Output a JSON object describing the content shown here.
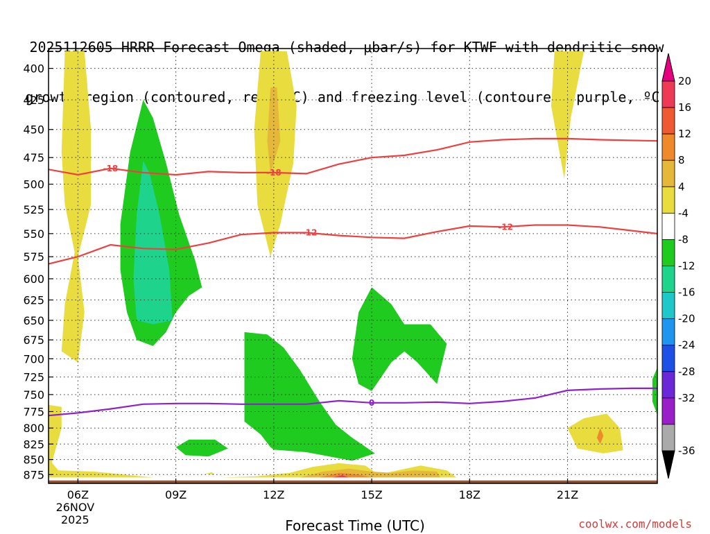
{
  "title": {
    "line1": "2025112605 HRRR Forecast Omega (shaded, μbar/s) for KTWF with dendritic snow",
    "line2": "growth region (contoured, red, ºC) and freezing level (contoured, purple, ºC)"
  },
  "credit": "coolwx.com/models",
  "chart_data": {
    "type": "heatmap",
    "title": "2025112605 HRRR Forecast Omega (shaded, μbar/s) for KTWF with dendritic snow growth region (contoured, red, ºC) and freezing level (contoured, purple, ºC)",
    "xlabel": "Forecast Time (UTC)",
    "ylabel": "",
    "x_ticks": [
      {
        "hour": 6,
        "label": "06Z",
        "sub1": "26NOV",
        "sub2": "2025"
      },
      {
        "hour": 9,
        "label": "09Z"
      },
      {
        "hour": 12,
        "label": "12Z"
      },
      {
        "hour": 15,
        "label": "15Z"
      },
      {
        "hour": 18,
        "label": "18Z"
      },
      {
        "hour": 21,
        "label": "21Z"
      }
    ],
    "xlim": [
      5.1,
      23.75
    ],
    "ylim": [
      890,
      385
    ],
    "y_ticks": [
      400,
      425,
      450,
      475,
      500,
      525,
      550,
      575,
      600,
      625,
      650,
      675,
      700,
      725,
      750,
      775,
      800,
      825,
      850,
      875
    ],
    "colorbar": {
      "labels": [
        "20",
        "16",
        "12",
        "8",
        "4",
        "-4",
        "-8",
        "-12",
        "-16",
        "-20",
        "-24",
        "-28",
        "-32",
        "-36"
      ],
      "colors": [
        "#ee3b55",
        "#f05a32",
        "#ee8a2c",
        "#e6b83a",
        "#e9dc3e",
        "#ffffff",
        "#1ecb1e",
        "#1ed48c",
        "#1ec8c8",
        "#1e96f0",
        "#1e50e6",
        "#6a28d6",
        "#9a1fc8",
        "#aaaaaa"
      ],
      "top_color": "#e6007e",
      "bottom_color": "#000000"
    },
    "contours": [
      {
        "label": "-18",
        "color": "#ee4040",
        "points": [
          [
            5.1,
            486
          ],
          [
            6.0,
            491
          ],
          [
            7.0,
            485
          ],
          [
            8.0,
            489
          ],
          [
            9.0,
            491
          ],
          [
            10.0,
            488
          ],
          [
            11.0,
            489
          ],
          [
            12.0,
            489
          ],
          [
            13.0,
            490
          ],
          [
            14.0,
            481
          ],
          [
            15.0,
            475
          ],
          [
            16.0,
            473
          ],
          [
            17.0,
            468
          ],
          [
            18.0,
            461
          ],
          [
            19.0,
            459
          ],
          [
            20.0,
            458
          ],
          [
            21.0,
            458
          ],
          [
            22.0,
            459
          ],
          [
            23.75,
            460
          ]
        ]
      },
      {
        "label": "-12",
        "color": "#ee4040",
        "points": [
          [
            5.1,
            583
          ],
          [
            6.0,
            575
          ],
          [
            7.0,
            562
          ],
          [
            8.0,
            566
          ],
          [
            9.0,
            567
          ],
          [
            10.0,
            560
          ],
          [
            11.0,
            551
          ],
          [
            12.0,
            549
          ],
          [
            13.0,
            549
          ],
          [
            14.0,
            552
          ],
          [
            15.0,
            554
          ],
          [
            16.0,
            555
          ],
          [
            17.0,
            548
          ],
          [
            18.0,
            542
          ],
          [
            19.0,
            543
          ],
          [
            20.0,
            541
          ],
          [
            21.0,
            541
          ],
          [
            22.0,
            543
          ],
          [
            23.75,
            550
          ]
        ]
      },
      {
        "label": "0",
        "color": "#8f1fd0",
        "points": [
          [
            5.1,
            781
          ],
          [
            6.0,
            777
          ],
          [
            7.0,
            771
          ],
          [
            8.0,
            764
          ],
          [
            9.0,
            763
          ],
          [
            10.0,
            763
          ],
          [
            11.0,
            764
          ],
          [
            12.0,
            764
          ],
          [
            13.0,
            764
          ],
          [
            14.0,
            759
          ],
          [
            15.0,
            762
          ],
          [
            16.0,
            762
          ],
          [
            17.0,
            761
          ],
          [
            18.0,
            763
          ],
          [
            19.0,
            760
          ],
          [
            20.0,
            755
          ],
          [
            21.0,
            744
          ],
          [
            22.0,
            742
          ],
          [
            23.0,
            741
          ],
          [
            23.75,
            741
          ]
        ]
      }
    ],
    "contour_labels": [
      {
        "text": "-18",
        "hour": 7.0,
        "p": 485
      },
      {
        "text": "-18",
        "hour": 12.0,
        "p": 489
      },
      {
        "text": "-12",
        "hour": 13.1,
        "p": 549
      },
      {
        "text": "-12",
        "hour": 19.1,
        "p": 543
      },
      {
        "text": "0",
        "hour": 15.0,
        "p": 762
      }
    ],
    "omega_regions": [
      {
        "value": 4,
        "color": "#e9dc3e",
        "points": [
          [
            6.0,
            387
          ],
          [
            5.6,
            387
          ],
          [
            5.5,
            470
          ],
          [
            5.6,
            520
          ],
          [
            5.9,
            570
          ],
          [
            5.6,
            630
          ],
          [
            5.5,
            690
          ],
          [
            6.0,
            705
          ],
          [
            6.2,
            640
          ],
          [
            6.0,
            575
          ],
          [
            6.4,
            520
          ],
          [
            6.4,
            450
          ],
          [
            6.2,
            387
          ]
        ]
      },
      {
        "value": 4,
        "color": "#e9dc3e",
        "points": [
          [
            11.6,
            387
          ],
          [
            11.4,
            450
          ],
          [
            11.5,
            520
          ],
          [
            11.9,
            575
          ],
          [
            12.2,
            540
          ],
          [
            12.6,
            480
          ],
          [
            12.7,
            430
          ],
          [
            12.4,
            387
          ]
        ]
      },
      {
        "value": 8,
        "color": "#e6b83a",
        "points": [
          [
            11.9,
            415
          ],
          [
            11.8,
            460
          ],
          [
            11.9,
            490
          ],
          [
            12.2,
            460
          ],
          [
            12.1,
            415
          ]
        ]
      },
      {
        "value": 4,
        "color": "#e9dc3e",
        "points": [
          [
            20.6,
            387
          ],
          [
            20.5,
            430
          ],
          [
            20.9,
            495
          ],
          [
            21.1,
            440
          ],
          [
            21.5,
            387
          ]
        ]
      },
      {
        "value": 4,
        "color": "#e9dc3e",
        "points": [
          [
            21.0,
            800
          ],
          [
            21.3,
            832
          ],
          [
            22.1,
            840
          ],
          [
            22.7,
            835
          ],
          [
            22.6,
            800
          ],
          [
            22.2,
            778
          ],
          [
            21.5,
            785
          ]
        ]
      },
      {
        "value": 8,
        "color": "#ee8a2c",
        "points": [
          [
            21.9,
            815
          ],
          [
            22.0,
            825
          ],
          [
            22.1,
            812
          ],
          [
            22.0,
            800
          ]
        ]
      },
      {
        "value": 4,
        "color": "#e9dc3e",
        "points": [
          [
            5.1,
            765
          ],
          [
            5.5,
            768
          ],
          [
            5.5,
            800
          ],
          [
            5.2,
            855
          ],
          [
            5.4,
            868
          ],
          [
            6.5,
            870
          ],
          [
            8.3,
            880
          ],
          [
            5.1,
            880
          ]
        ]
      },
      {
        "value": 4,
        "color": "#e9dc3e",
        "points": [
          [
            10.4,
            880
          ],
          [
            11.5,
            878
          ],
          [
            12.5,
            872
          ],
          [
            13.2,
            862
          ],
          [
            14.0,
            856
          ],
          [
            14.8,
            860
          ],
          [
            15.2,
            875
          ],
          [
            15.8,
            868
          ],
          [
            16.5,
            860
          ],
          [
            17.3,
            868
          ],
          [
            17.6,
            880
          ]
        ]
      },
      {
        "value": 8,
        "color": "#e6b83a",
        "points": [
          [
            12.8,
            880
          ],
          [
            13.5,
            870
          ],
          [
            14.3,
            865
          ],
          [
            15.0,
            870
          ],
          [
            15.6,
            872
          ],
          [
            16.3,
            868
          ],
          [
            17.0,
            870
          ],
          [
            17.1,
            880
          ]
        ]
      },
      {
        "value": 12,
        "color": "#ee8a2c",
        "points": [
          [
            13.4,
            880
          ],
          [
            14.0,
            872
          ],
          [
            14.6,
            875
          ],
          [
            15.0,
            880
          ]
        ]
      },
      {
        "value": 16,
        "color": "#ee3b55",
        "points": [
          [
            13.8,
            880
          ],
          [
            14.1,
            876
          ],
          [
            14.3,
            880
          ]
        ]
      },
      {
        "value": 4,
        "color": "#e9dc3e",
        "points": [
          [
            9.9,
            874
          ],
          [
            10.1,
            871
          ],
          [
            10.2,
            875
          ]
        ]
      },
      {
        "value": -4,
        "color": "#1ecb1e",
        "points": [
          [
            8.0,
            425
          ],
          [
            7.6,
            470
          ],
          [
            7.3,
            540
          ],
          [
            7.3,
            590
          ],
          [
            7.5,
            640
          ],
          [
            7.8,
            675
          ],
          [
            8.3,
            683
          ],
          [
            8.7,
            665
          ],
          [
            9.0,
            640
          ],
          [
            9.4,
            620
          ],
          [
            9.8,
            610
          ],
          [
            9.6,
            580
          ],
          [
            9.1,
            530
          ],
          [
            8.7,
            480
          ],
          [
            8.3,
            440
          ]
        ]
      },
      {
        "value": -8,
        "color": "#1ed48c",
        "points": [
          [
            8.0,
            478
          ],
          [
            7.8,
            530
          ],
          [
            7.7,
            600
          ],
          [
            7.8,
            650
          ],
          [
            8.3,
            655
          ],
          [
            8.9,
            650
          ],
          [
            8.8,
            590
          ],
          [
            8.5,
            530
          ],
          [
            8.2,
            490
          ]
        ]
      },
      {
        "value": -4,
        "color": "#1ecb1e",
        "points": [
          [
            11.1,
            665
          ],
          [
            11.1,
            790
          ],
          [
            11.6,
            810
          ],
          [
            11.9,
            830
          ],
          [
            12.0,
            834
          ],
          [
            13.0,
            838
          ],
          [
            14.4,
            852
          ],
          [
            15.1,
            840
          ],
          [
            14.4,
            815
          ],
          [
            13.9,
            795
          ],
          [
            13.4,
            760
          ],
          [
            12.8,
            715
          ],
          [
            12.3,
            685
          ],
          [
            11.8,
            668
          ]
        ]
      },
      {
        "value": -4,
        "color": "#1ecb1e",
        "points": [
          [
            15.0,
            610
          ],
          [
            14.6,
            640
          ],
          [
            14.4,
            700
          ],
          [
            14.6,
            735
          ],
          [
            15.0,
            745
          ],
          [
            15.6,
            705
          ],
          [
            16.0,
            690
          ],
          [
            16.4,
            705
          ],
          [
            17.0,
            735
          ],
          [
            17.3,
            680
          ],
          [
            16.8,
            655
          ],
          [
            16.0,
            655
          ],
          [
            15.6,
            630
          ]
        ]
      },
      {
        "value": -4,
        "color": "#1ecb1e",
        "points": [
          [
            9.4,
            818
          ],
          [
            9.0,
            830
          ],
          [
            9.3,
            843
          ],
          [
            10.0,
            845
          ],
          [
            10.6,
            832
          ],
          [
            10.2,
            818
          ]
        ]
      },
      {
        "value": -4,
        "color": "#1ecb1e",
        "points": [
          [
            23.75,
            712
          ],
          [
            23.6,
            728
          ],
          [
            23.6,
            760
          ],
          [
            23.75,
            780
          ]
        ]
      }
    ],
    "ground": {
      "color": "#a0522d",
      "p_top": 885
    }
  }
}
